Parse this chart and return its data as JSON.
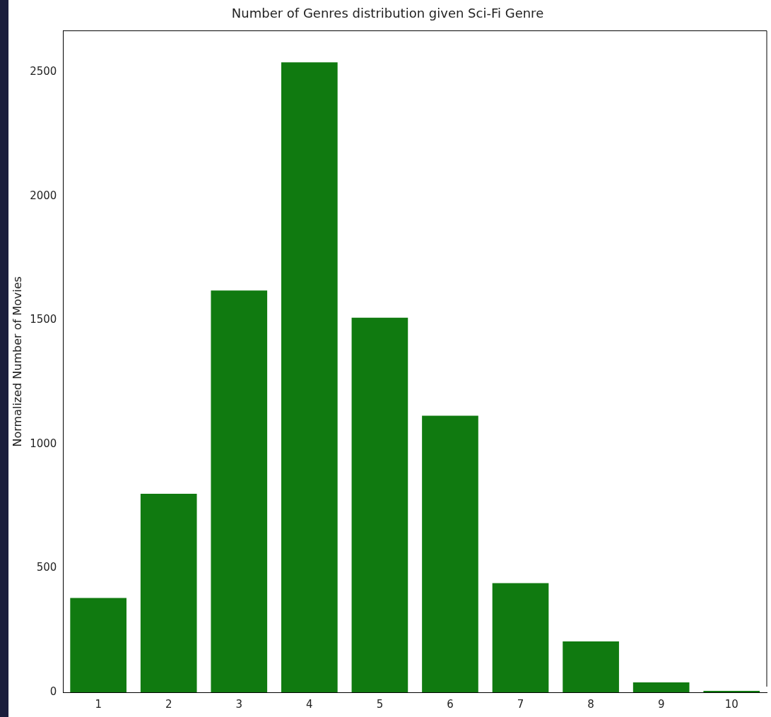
{
  "chart_data": {
    "type": "bar",
    "title": "Number of Genres distribution given Sci-Fi Genre",
    "ylabel": "Normalized Number of Movies",
    "categories": [
      "1",
      "2",
      "3",
      "4",
      "5",
      "6",
      "7",
      "8",
      "9",
      "10"
    ],
    "values": [
      380,
      800,
      1620,
      2540,
      1510,
      1115,
      440,
      205,
      40,
      6
    ],
    "color": "#107a10",
    "ylim": [
      0,
      2667
    ],
    "yticks": [
      0,
      500,
      1000,
      1500,
      2000,
      2500
    ],
    "grid": false,
    "legend": false
  }
}
